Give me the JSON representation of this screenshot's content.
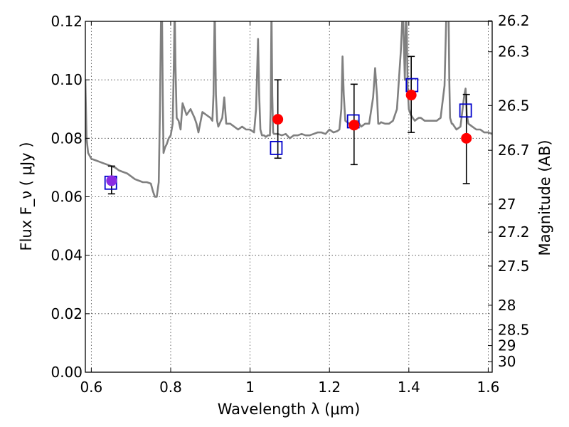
{
  "chart_data": {
    "type": "scatter",
    "title": "",
    "xlabel": "Wavelength  λ (μm)",
    "ylabel": "Flux  F_ν  ( μJy )",
    "y2label": "Magnitude (AB)",
    "xlim": [
      0.585,
      1.61
    ],
    "ylim": [
      0.0,
      0.12
    ],
    "grid": true,
    "x_ticks": [
      0.6,
      0.8,
      1.0,
      1.2,
      1.4,
      1.6
    ],
    "x_tick_labels": [
      "0.6",
      "0.8",
      "1",
      "1.2",
      "1.4",
      "1.6"
    ],
    "y_ticks": [
      0.0,
      0.02,
      0.04,
      0.06,
      0.08,
      0.1,
      0.12
    ],
    "y_tick_labels": [
      "0.00",
      "0.02",
      "0.04",
      "0.06",
      "0.08",
      "0.10",
      "0.12"
    ],
    "y2_ticks": [
      {
        "label": "26.2",
        "flux": 0.1202
      },
      {
        "label": "26.3",
        "flux": 0.1096
      },
      {
        "label": "26.5",
        "flux": 0.0912
      },
      {
        "label": "26.7",
        "flux": 0.0759
      },
      {
        "label": "27",
        "flux": 0.0575
      },
      {
        "label": "27.2",
        "flux": 0.0479
      },
      {
        "label": "27.5",
        "flux": 0.0363
      },
      {
        "label": "28",
        "flux": 0.0229
      },
      {
        "label": "28.5",
        "flux": 0.0145
      },
      {
        "label": "29",
        "flux": 0.0091
      },
      {
        "label": "30",
        "flux": 0.0036
      }
    ],
    "series": [
      {
        "role": "model_spectrum",
        "style": "line",
        "color": "#808080",
        "x": [
          0.585,
          0.588,
          0.592,
          0.596,
          0.6,
          0.61,
          0.62,
          0.63,
          0.64,
          0.65,
          0.66,
          0.67,
          0.68,
          0.69,
          0.7,
          0.71,
          0.72,
          0.73,
          0.74,
          0.75,
          0.755,
          0.76,
          0.765,
          0.77,
          0.773,
          0.776,
          0.778,
          0.78,
          0.782,
          0.786,
          0.79,
          0.795,
          0.8,
          0.805,
          0.808,
          0.81,
          0.812,
          0.815,
          0.82,
          0.825,
          0.83,
          0.84,
          0.85,
          0.86,
          0.865,
          0.87,
          0.88,
          0.89,
          0.9,
          0.905,
          0.908,
          0.911,
          0.914,
          0.917,
          0.92,
          0.93,
          0.935,
          0.94,
          0.95,
          0.96,
          0.97,
          0.98,
          0.99,
          1.0,
          1.01,
          1.015,
          1.02,
          1.023,
          1.026,
          1.03,
          1.035,
          1.04,
          1.045,
          1.05,
          1.052,
          1.054,
          1.056,
          1.058,
          1.06,
          1.07,
          1.08,
          1.09,
          1.1,
          1.11,
          1.12,
          1.13,
          1.14,
          1.15,
          1.16,
          1.17,
          1.18,
          1.19,
          1.2,
          1.21,
          1.22,
          1.225,
          1.23,
          1.233,
          1.236,
          1.24,
          1.25,
          1.26,
          1.27,
          1.28,
          1.29,
          1.3,
          1.31,
          1.315,
          1.32,
          1.323,
          1.326,
          1.33,
          1.34,
          1.35,
          1.36,
          1.37,
          1.38,
          1.385,
          1.39,
          1.393,
          1.395,
          1.397,
          1.4,
          1.405,
          1.41,
          1.415,
          1.42,
          1.425,
          1.43,
          1.44,
          1.45,
          1.46,
          1.47,
          1.48,
          1.49,
          1.495,
          1.5,
          1.502,
          1.504,
          1.506,
          1.508,
          1.51,
          1.52,
          1.53,
          1.54,
          1.543,
          1.546,
          1.55,
          1.56,
          1.57,
          1.58,
          1.59,
          1.6,
          1.61
        ],
        "y": [
          0.1,
          0.08,
          0.075,
          0.074,
          0.073,
          0.0725,
          0.072,
          0.0715,
          0.071,
          0.0705,
          0.07,
          0.069,
          0.0685,
          0.068,
          0.067,
          0.066,
          0.0655,
          0.065,
          0.065,
          0.0645,
          0.062,
          0.06,
          0.06,
          0.065,
          0.09,
          0.125,
          0.125,
          0.095,
          0.075,
          0.077,
          0.078,
          0.08,
          0.081,
          0.085,
          0.105,
          0.125,
          0.105,
          0.087,
          0.086,
          0.083,
          0.092,
          0.088,
          0.09,
          0.087,
          0.085,
          0.082,
          0.089,
          0.088,
          0.087,
          0.086,
          0.095,
          0.125,
          0.095,
          0.086,
          0.084,
          0.087,
          0.094,
          0.085,
          0.085,
          0.084,
          0.083,
          0.084,
          0.083,
          0.083,
          0.082,
          0.09,
          0.114,
          0.095,
          0.083,
          0.081,
          0.081,
          0.0805,
          0.081,
          0.081,
          0.09,
          0.125,
          0.095,
          0.082,
          0.0815,
          0.0815,
          0.081,
          0.0815,
          0.08,
          0.081,
          0.081,
          0.0815,
          0.081,
          0.081,
          0.0815,
          0.082,
          0.082,
          0.0815,
          0.083,
          0.082,
          0.0825,
          0.083,
          0.09,
          0.108,
          0.095,
          0.086,
          0.085,
          0.083,
          0.086,
          0.084,
          0.085,
          0.085,
          0.094,
          0.104,
          0.094,
          0.085,
          0.085,
          0.0855,
          0.085,
          0.085,
          0.086,
          0.09,
          0.11,
          0.125,
          0.1,
          0.125,
          0.115,
          0.098,
          0.09,
          0.088,
          0.087,
          0.086,
          0.0865,
          0.087,
          0.087,
          0.086,
          0.086,
          0.086,
          0.086,
          0.087,
          0.098,
          0.125,
          0.125,
          0.1,
          0.087,
          0.086,
          0.085,
          0.085,
          0.083,
          0.084,
          0.095,
          0.097,
          0.088,
          0.085,
          0.084,
          0.083,
          0.083,
          0.082,
          0.082,
          0.0815
        ]
      },
      {
        "role": "model_photometry",
        "style": "open_square",
        "color": "#0000cc",
        "x": [
          0.649,
          1.066,
          1.26,
          1.408,
          1.543
        ],
        "y": [
          0.0648,
          0.0767,
          0.0858,
          0.0982,
          0.0895
        ]
      },
      {
        "role": "observed_photometry",
        "style": "filled_circle",
        "color": "#ff0000",
        "x": [
          0.651,
          1.07,
          1.262,
          1.406,
          1.545
        ],
        "y": [
          0.0655,
          0.0865,
          0.0845,
          0.0948,
          0.08
        ],
        "yerr_low": [
          0.0045,
          0.0133,
          0.0135,
          0.0128,
          0.0155
        ],
        "yerr_high": [
          0.005,
          0.0135,
          0.014,
          0.0132,
          0.015
        ]
      }
    ]
  },
  "colors": {
    "spectrum": "#808080",
    "model_photometry": "#0000cc",
    "observed_photometry": "#ff0000",
    "overlap": "#8a2be2"
  }
}
